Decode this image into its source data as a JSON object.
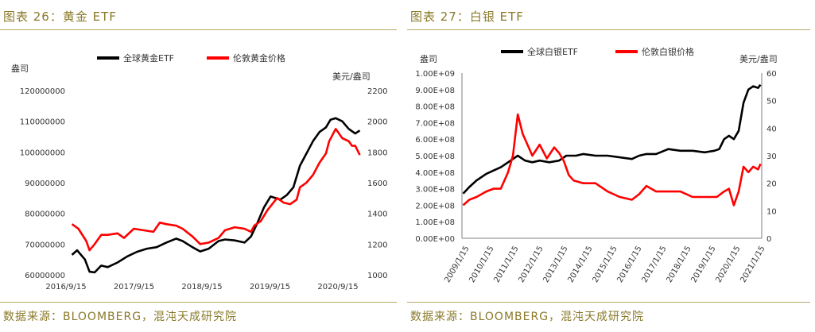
{
  "colors": {
    "gold_text": "#8a7a2a",
    "rule": "#b8a96a",
    "etf_series": "#000000",
    "price_series": "#ff0000"
  },
  "chart_data": [
    {
      "id": "gold",
      "type": "line",
      "figure_title": "图表 26：黄金 ETF",
      "source": "数据来源：BLOOMBERG，混沌天成研究院",
      "left_axis_title": "盎司",
      "right_axis_title": "美元/盎司",
      "left_ticks": [
        "120000000",
        "110000000",
        "100000000",
        "90000000",
        "80000000",
        "70000000",
        "60000000"
      ],
      "right_ticks": [
        "2200",
        "2000",
        "1800",
        "1600",
        "1400",
        "1200",
        "1000"
      ],
      "x_ticks": [
        "2016/9/15",
        "2017/9/15",
        "2018/9/15",
        "2019/9/15",
        "2020/9/15"
      ],
      "ylim_left": [
        60000000,
        120000000
      ],
      "ylim_right": [
        1000,
        2200
      ],
      "xlim": [
        2016.67,
        2021.15
      ],
      "legend_position": "top-center",
      "series": [
        {
          "name": "全球黄金ETF",
          "axis": "left",
          "x": [
            2016.7,
            2016.78,
            2016.9,
            2016.97,
            2017.05,
            2017.15,
            2017.25,
            2017.4,
            2017.55,
            2017.7,
            2017.85,
            2018.0,
            2018.15,
            2018.3,
            2018.4,
            2018.55,
            2018.67,
            2018.8,
            2018.95,
            2019.05,
            2019.2,
            2019.35,
            2019.45,
            2019.55,
            2019.65,
            2019.75,
            2019.9,
            2020.0,
            2020.1,
            2020.2,
            2020.3,
            2020.4,
            2020.5,
            2020.6,
            2020.67,
            2020.75,
            2020.85,
            2020.95,
            2021.05,
            2021.12
          ],
          "values": [
            66500000,
            68000000,
            65000000,
            61000000,
            60800000,
            63000000,
            62500000,
            64000000,
            66000000,
            67500000,
            68500000,
            69000000,
            70500000,
            71800000,
            71000000,
            69000000,
            67600000,
            68500000,
            71000000,
            71500000,
            71200000,
            70500000,
            72500000,
            77000000,
            82000000,
            85500000,
            84500000,
            86000000,
            88500000,
            95500000,
            99500000,
            103500000,
            106500000,
            108000000,
            110500000,
            111000000,
            110000000,
            107500000,
            106000000,
            107000000
          ]
        },
        {
          "name": "伦敦黄金价格",
          "axis": "right",
          "x": [
            2016.7,
            2016.8,
            2016.92,
            2016.97,
            2017.05,
            2017.15,
            2017.25,
            2017.4,
            2017.5,
            2017.65,
            2017.8,
            2017.95,
            2018.05,
            2018.15,
            2018.3,
            2018.4,
            2018.55,
            2018.67,
            2018.8,
            2018.95,
            2019.05,
            2019.2,
            2019.35,
            2019.45,
            2019.5,
            2019.6,
            2019.7,
            2019.85,
            2019.95,
            2020.05,
            2020.15,
            2020.2,
            2020.3,
            2020.4,
            2020.5,
            2020.6,
            2020.65,
            2020.75,
            2020.85,
            2020.95,
            2021.0,
            2021.05,
            2021.12
          ],
          "values": [
            1330,
            1300,
            1220,
            1160,
            1200,
            1260,
            1260,
            1270,
            1240,
            1300,
            1290,
            1280,
            1340,
            1330,
            1320,
            1300,
            1250,
            1200,
            1210,
            1240,
            1290,
            1310,
            1300,
            1280,
            1320,
            1350,
            1420,
            1500,
            1470,
            1460,
            1490,
            1570,
            1600,
            1650,
            1730,
            1790,
            1870,
            1950,
            1890,
            1870,
            1840,
            1840,
            1780
          ]
        }
      ]
    },
    {
      "id": "silver",
      "type": "line",
      "figure_title": "图表 27：白银 ETF",
      "source": "数据来源：BLOOMBERG，混沌天成研究院",
      "left_axis_title": "盎司",
      "right_axis_title": "美元/盎司",
      "left_ticks": [
        "1.00E+09",
        "9.00E+08",
        "8.00E+08",
        "7.00E+08",
        "6.00E+08",
        "5.00E+08",
        "4.00E+08",
        "3.00E+08",
        "2.00E+08",
        "1.00E+08",
        "0.00E+00"
      ],
      "right_ticks": [
        "60",
        "50",
        "40",
        "30",
        "20",
        "10",
        "0"
      ],
      "x_ticks": [
        "2009/1/15",
        "2010/1/15",
        "2011/1/15",
        "2012/1/15",
        "2013/1/15",
        "2014/1/15",
        "2015/1/15",
        "2016/1/15",
        "2017/1/15",
        "2018/1/15",
        "2019/1/15",
        "2020/1/15",
        "2021/1/15"
      ],
      "ylim_left": [
        0,
        1000000000
      ],
      "ylim_right": [
        0,
        60
      ],
      "xlim": [
        2009.0,
        2021.35
      ],
      "legend_position": "top-center",
      "series": [
        {
          "name": "全球白银ETF",
          "axis": "left",
          "x": [
            2009.05,
            2009.3,
            2009.6,
            2010.0,
            2010.3,
            2010.6,
            2011.0,
            2011.3,
            2011.6,
            2011.9,
            2012.2,
            2012.6,
            2013.0,
            2013.3,
            2013.7,
            2014.0,
            2014.5,
            2015.0,
            2015.5,
            2016.0,
            2016.3,
            2016.6,
            2017.0,
            2017.5,
            2018.0,
            2018.5,
            2019.0,
            2019.4,
            2019.6,
            2019.8,
            2020.0,
            2020.2,
            2020.4,
            2020.6,
            2020.8,
            2021.0,
            2021.2,
            2021.3
          ],
          "values": [
            270000000,
            310000000,
            350000000,
            390000000,
            410000000,
            430000000,
            470000000,
            500000000,
            470000000,
            460000000,
            470000000,
            460000000,
            470000000,
            500000000,
            500000000,
            510000000,
            500000000,
            500000000,
            490000000,
            480000000,
            500000000,
            510000000,
            510000000,
            540000000,
            530000000,
            530000000,
            520000000,
            530000000,
            540000000,
            600000000,
            620000000,
            600000000,
            650000000,
            820000000,
            900000000,
            920000000,
            910000000,
            930000000
          ]
        },
        {
          "name": "伦敦白银价格",
          "axis": "right",
          "x": [
            2009.05,
            2009.3,
            2009.6,
            2010.0,
            2010.3,
            2010.6,
            2010.9,
            2011.1,
            2011.3,
            2011.5,
            2011.7,
            2011.9,
            2012.2,
            2012.5,
            2012.8,
            2013.0,
            2013.2,
            2013.4,
            2013.6,
            2014.0,
            2014.5,
            2015.0,
            2015.5,
            2016.0,
            2016.3,
            2016.6,
            2017.0,
            2017.5,
            2018.0,
            2018.5,
            2019.0,
            2019.5,
            2019.8,
            2020.0,
            2020.2,
            2020.4,
            2020.6,
            2020.8,
            2021.0,
            2021.2,
            2021.3
          ],
          "values": [
            12,
            14,
            15,
            17,
            18,
            18,
            24,
            30,
            45,
            38,
            34,
            30,
            34,
            29,
            33,
            31,
            28,
            23,
            21,
            20,
            20,
            17,
            15,
            14,
            16,
            19,
            17,
            17,
            17,
            15,
            15,
            15,
            17,
            18,
            12,
            17,
            26,
            24,
            26,
            25,
            27
          ]
        }
      ]
    }
  ]
}
